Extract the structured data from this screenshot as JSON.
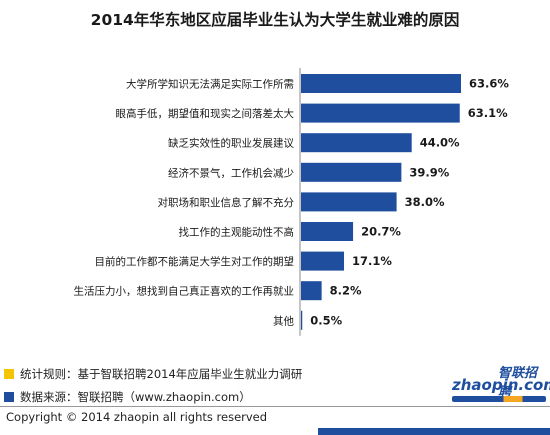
{
  "title": "2014年华东地区应届毕业生认为大学生就业难的原因",
  "chart_data": {
    "type": "bar",
    "orientation": "horizontal",
    "title": "2014年华东地区应届毕业生认为大学生就业难的原因",
    "categories": [
      "大学所学知识无法满足实际工作所需",
      "眼高手低，期望值和现实之间落差太大",
      "缺乏实效性的职业发展建议",
      "经济不景气，工作机会减少",
      "对职场和职业信息了解不充分",
      "找工作的主观能动性不高",
      "目前的工作都不能满足大学生对工作的期望",
      "生活压力小，想找到自己真正喜欢的工作再就业",
      "其他"
    ],
    "values": [
      63.6,
      63.1,
      44.0,
      39.9,
      38.0,
      20.7,
      17.1,
      8.2,
      0.5
    ],
    "value_labels": [
      "63.6%",
      "63.1%",
      "44.0%",
      "39.9%",
      "38.0%",
      "20.7%",
      "17.1%",
      "8.2%",
      "0.5%"
    ],
    "unit": "%",
    "bar_color": "#1f4e9e",
    "xlim": [
      0,
      63.6
    ],
    "grid": false,
    "legend": false
  },
  "notes": {
    "rule_color": "#f5c400",
    "rule_text": "统计规则：基于智联招聘2014年应届毕业生就业力调研",
    "source_color": "#1f4e9e",
    "source_text": "数据来源：智联招聘（www.zhaopin.com）"
  },
  "footer": {
    "copyright": "Copyright  ©  2014 zhaopin all rights reserved"
  },
  "logo": {
    "name": "智联招聘",
    "site": "zhaopin.com"
  }
}
